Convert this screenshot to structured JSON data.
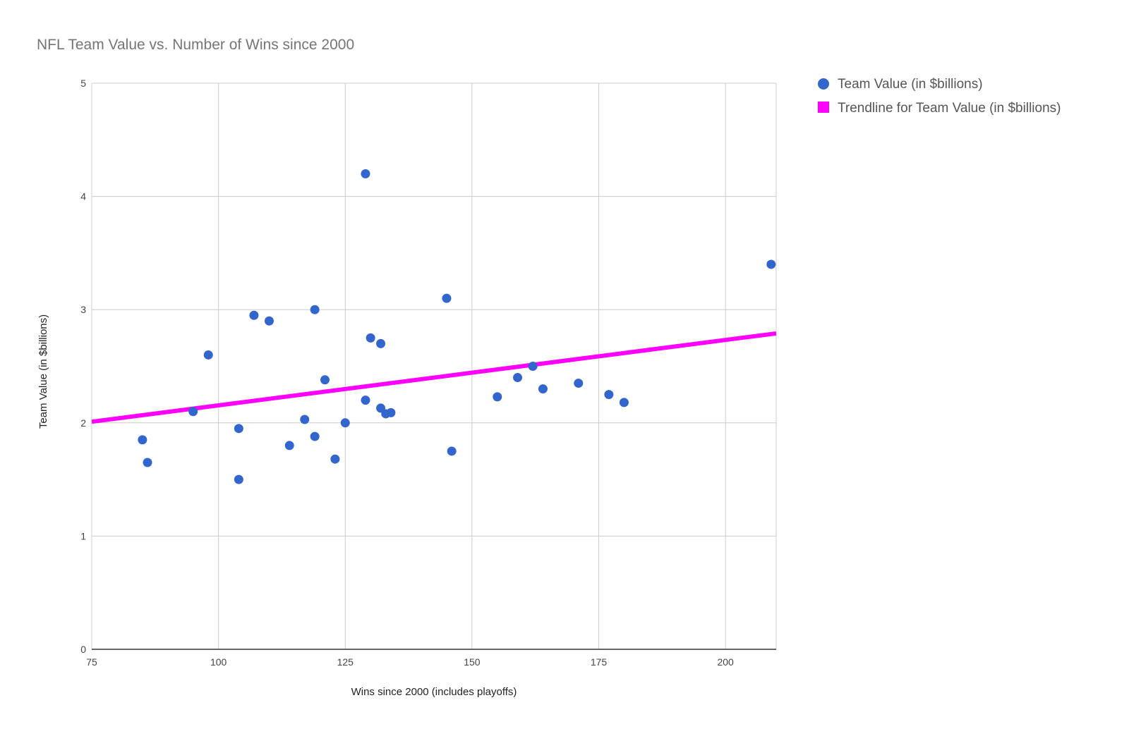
{
  "chart_data": {
    "type": "scatter",
    "title": "NFL Team Value vs. Number of Wins since 2000",
    "xlabel": "Wins since 2000 (includes playoffs)",
    "ylabel": "Team Value (in $billions)",
    "xlim": [
      75,
      210
    ],
    "ylim": [
      0,
      5
    ],
    "x_ticks": [
      75,
      100,
      125,
      150,
      175,
      200
    ],
    "y_ticks": [
      0,
      1,
      2,
      3,
      4,
      5
    ],
    "grid": true,
    "legend_position": "right-top",
    "series": [
      {
        "name": "Team Value (in $billions)",
        "color": "#3366cc",
        "marker": "circle",
        "points": [
          {
            "x": 85,
            "y": 1.85
          },
          {
            "x": 86,
            "y": 1.65
          },
          {
            "x": 95,
            "y": 2.1
          },
          {
            "x": 98,
            "y": 2.6
          },
          {
            "x": 104,
            "y": 1.95
          },
          {
            "x": 104,
            "y": 1.5
          },
          {
            "x": 107,
            "y": 2.95
          },
          {
            "x": 110,
            "y": 2.9
          },
          {
            "x": 114,
            "y": 1.8
          },
          {
            "x": 117,
            "y": 2.03
          },
          {
            "x": 119,
            "y": 3.0
          },
          {
            "x": 119,
            "y": 1.88
          },
          {
            "x": 121,
            "y": 2.38
          },
          {
            "x": 123,
            "y": 1.68
          },
          {
            "x": 125,
            "y": 2.0
          },
          {
            "x": 129,
            "y": 4.2
          },
          {
            "x": 129,
            "y": 2.2
          },
          {
            "x": 130,
            "y": 2.75
          },
          {
            "x": 132,
            "y": 2.7
          },
          {
            "x": 132,
            "y": 2.13
          },
          {
            "x": 133,
            "y": 2.08
          },
          {
            "x": 134,
            "y": 2.09
          },
          {
            "x": 145,
            "y": 3.1
          },
          {
            "x": 146,
            "y": 1.75
          },
          {
            "x": 155,
            "y": 2.23
          },
          {
            "x": 159,
            "y": 2.4
          },
          {
            "x": 162,
            "y": 2.5
          },
          {
            "x": 164,
            "y": 2.3
          },
          {
            "x": 171,
            "y": 2.35
          },
          {
            "x": 177,
            "y": 2.25
          },
          {
            "x": 180,
            "y": 2.18
          },
          {
            "x": 209,
            "y": 3.4
          }
        ]
      },
      {
        "name": "Trendline for Team Value (in $billions)",
        "color": "#ff00ff",
        "marker": "square",
        "type": "line",
        "points": [
          {
            "x": 75,
            "y": 2.01
          },
          {
            "x": 210,
            "y": 2.79
          }
        ]
      }
    ]
  }
}
